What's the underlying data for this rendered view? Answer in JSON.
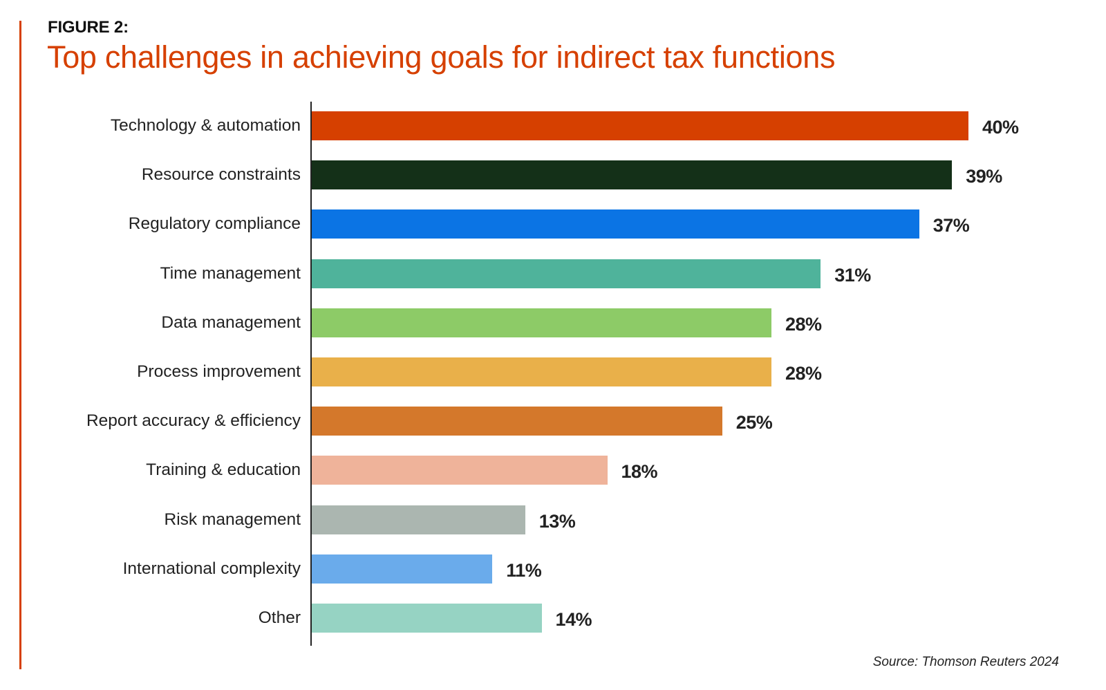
{
  "header": {
    "figure_label": "FIGURE 2:",
    "title": "Top challenges in achieving goals for indirect tax functions"
  },
  "footer": {
    "source": "Source: Thomson Reuters 2024"
  },
  "colors": {
    "accent": "#d64000",
    "text": "#222222"
  },
  "chart_data": {
    "type": "bar",
    "orientation": "horizontal",
    "title": "Top challenges in achieving goals for indirect tax functions",
    "subtitle": "FIGURE 2:",
    "xlabel": "",
    "ylabel": "",
    "unit": "%",
    "xlim": [
      0,
      40
    ],
    "grid": false,
    "legend": null,
    "source": "Source: Thomson Reuters 2024",
    "categories": [
      "Technology & automation",
      "Resource constraints",
      "Regulatory compliance",
      "Time management",
      "Data management",
      "Process improvement",
      "Report accuracy & efficiency",
      "Training & education",
      "Risk management",
      "International complexity",
      "Other"
    ],
    "values": [
      40,
      39,
      37,
      31,
      28,
      28,
      25,
      18,
      13,
      11,
      14
    ],
    "labels": [
      "40%",
      "39%",
      "37%",
      "31%",
      "28%",
      "28%",
      "25%",
      "18%",
      "13%",
      "11%",
      "14%"
    ],
    "bar_colors": [
      "#d64000",
      "#143018",
      "#0b74e4",
      "#4fb39b",
      "#8dcb67",
      "#e9b04a",
      "#d4782b",
      "#efb39a",
      "#abb6b0",
      "#6aabeb",
      "#96d3c3"
    ]
  }
}
